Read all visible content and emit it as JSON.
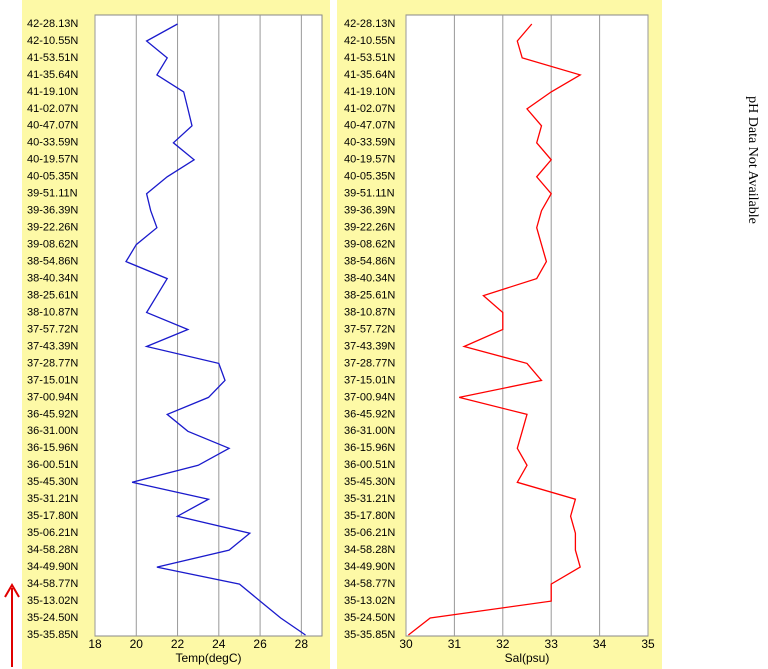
{
  "chart_data": [
    {
      "type": "line",
      "x_label": "Temp(degC)",
      "xlim": [
        18,
        29
      ],
      "xticks": [
        18,
        20,
        22,
        24,
        26,
        28
      ],
      "grid": true,
      "color": "#1a1acc",
      "categories": [
        "42-28.13N",
        "42-10.55N",
        "41-53.51N",
        "41-35.64N",
        "41-19.10N",
        "41-02.07N",
        "40-47.07N",
        "40-33.59N",
        "40-19.57N",
        "40-05.35N",
        "39-51.11N",
        "39-36.39N",
        "39-22.26N",
        "39-08.62N",
        "38-54.86N",
        "38-40.34N",
        "38-25.61N",
        "38-10.87N",
        "37-57.72N",
        "37-43.39N",
        "37-28.77N",
        "37-15.01N",
        "37-00.94N",
        "36-45.92N",
        "36-31.00N",
        "36-15.96N",
        "36-00.51N",
        "35-45.30N",
        "35-31.21N",
        "35-17.80N",
        "35-06.21N",
        "34-58.28N",
        "34-49.90N",
        "34-58.77N",
        "35-13.02N",
        "35-24.50N",
        "35-35.85N"
      ],
      "values": [
        22,
        20.5,
        21.5,
        21,
        22.3,
        22.5,
        22.7,
        21.8,
        22.8,
        21.5,
        20.5,
        20.7,
        21,
        20,
        19.5,
        21.5,
        21,
        20.5,
        22.5,
        20.5,
        24,
        24.3,
        23.5,
        21.5,
        22.5,
        24.5,
        23,
        19.8,
        23.5,
        22,
        25.5,
        24.5,
        21,
        25,
        26,
        27,
        28.2
      ]
    },
    {
      "type": "line",
      "x_label": "Sal(psu)",
      "xlim": [
        30,
        35
      ],
      "xticks": [
        30,
        31,
        32,
        33,
        34,
        35
      ],
      "grid": true,
      "color": "#ff0000",
      "categories": [
        "42-28.13N",
        "42-10.55N",
        "41-53.51N",
        "41-35.64N",
        "41-19.10N",
        "41-02.07N",
        "40-47.07N",
        "40-33.59N",
        "40-19.57N",
        "40-05.35N",
        "39-51.11N",
        "39-36.39N",
        "39-22.26N",
        "39-08.62N",
        "38-54.86N",
        "38-40.34N",
        "38-25.61N",
        "38-10.87N",
        "37-57.72N",
        "37-43.39N",
        "37-28.77N",
        "37-15.01N",
        "37-00.94N",
        "36-45.92N",
        "36-31.00N",
        "36-15.96N",
        "36-00.51N",
        "35-45.30N",
        "35-31.21N",
        "35-17.80N",
        "35-06.21N",
        "34-58.28N",
        "34-49.90N",
        "34-58.77N",
        "35-13.02N",
        "35-24.50N",
        "35-35.85N"
      ],
      "values": [
        32.6,
        32.3,
        32.4,
        33.6,
        33,
        32.5,
        32.8,
        32.7,
        33,
        32.7,
        33,
        32.8,
        32.7,
        32.8,
        32.9,
        32.7,
        31.6,
        32,
        32,
        31.2,
        32.5,
        32.8,
        31.1,
        32.5,
        32.4,
        32.3,
        32.5,
        32.3,
        33.5,
        33.4,
        33.5,
        33.5,
        33.6,
        33,
        33,
        30.5,
        30.05
      ]
    }
  ],
  "note": "pH Data Not Available"
}
